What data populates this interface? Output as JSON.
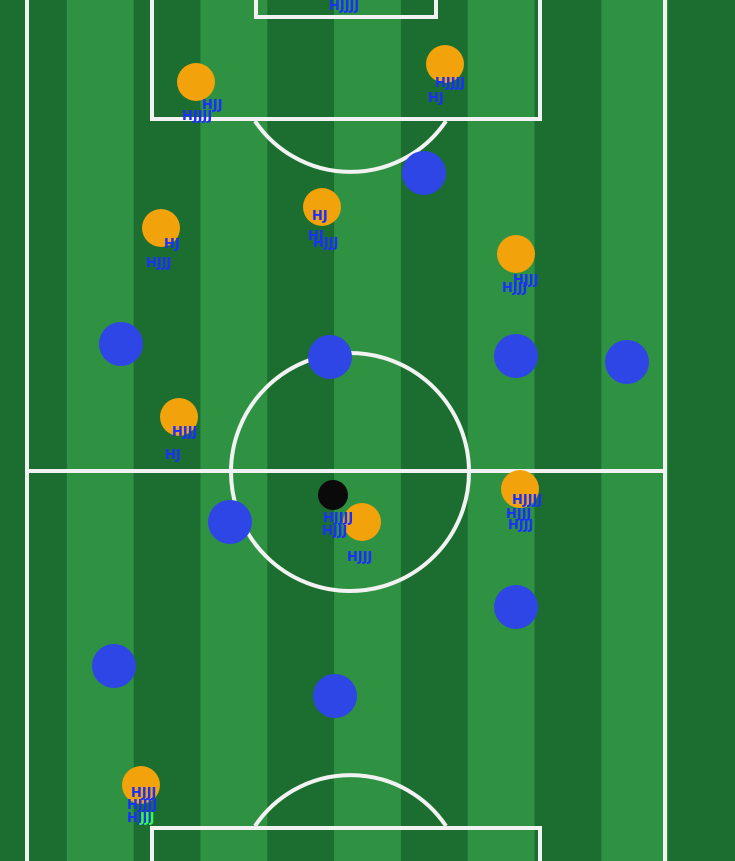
{
  "colors": {
    "grass_dark": "#1c6e30",
    "grass_light": "#2f9243",
    "line": "#f2f2f2",
    "team_a": "#f2a20a",
    "team_b": "#2f46e6",
    "ball": "#0a0a0a",
    "label": "#1a2fff",
    "label_highlight": "#37ff2b"
  },
  "team_a_icon": "orange-player-circle",
  "team_b_icon": "blue-player-circle",
  "ball_icon": "black-ball-circle",
  "labels": [
    {
      "id": "l1",
      "text": "HJJJJ"
    },
    {
      "id": "l2",
      "text": "HJJ"
    },
    {
      "id": "l3",
      "text": "HJJJJ"
    },
    {
      "id": "l4",
      "text": "HJJJJ"
    },
    {
      "id": "l5",
      "text": "HJ"
    },
    {
      "id": "l6",
      "text": "HJ"
    },
    {
      "id": "l7",
      "text": "HJ"
    },
    {
      "id": "l8",
      "text": "HJJJ"
    },
    {
      "id": "l9",
      "text": "HJ"
    },
    {
      "id": "l10",
      "text": "HJJJ"
    },
    {
      "id": "l11",
      "text": "HJJJ"
    },
    {
      "id": "l12",
      "text": "HJJJ"
    },
    {
      "id": "l13",
      "text": "HJ"
    },
    {
      "id": "l14",
      "text": "HJJJ"
    },
    {
      "id": "l15",
      "text": "HJJJJ"
    },
    {
      "id": "l16",
      "text": "HJJJ"
    },
    {
      "id": "l17",
      "text": "HJJJ"
    },
    {
      "id": "l18",
      "text": "HJJJJ"
    },
    {
      "id": "l19",
      "text": "HJJJ"
    },
    {
      "id": "l20",
      "text": "HJJJ"
    },
    {
      "id": "l21",
      "text": "HJJJ"
    },
    {
      "id": "l22",
      "text": "HJJJJ"
    },
    {
      "id": "l23",
      "text": "HJJJ"
    }
  ],
  "highlight_label": {
    "text": "JJJ"
  }
}
